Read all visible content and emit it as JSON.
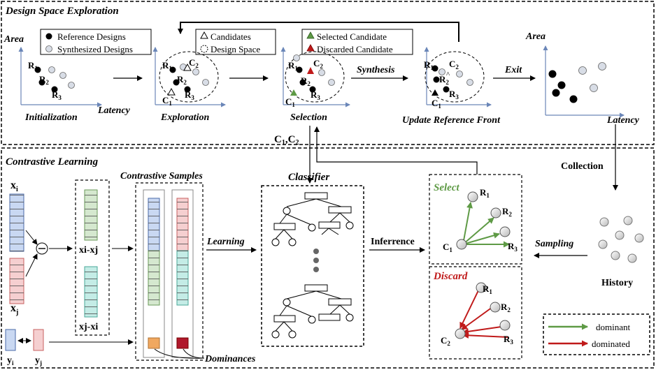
{
  "sections": {
    "top_title": "Design Space Exploration",
    "bottom_title": "Contrastive Learning"
  },
  "axes": {
    "area": "Area",
    "latency": "Latency"
  },
  "legends": {
    "reference": "Reference Designs",
    "synthesized": "Synthesized Designs",
    "candidates": "Candidates",
    "design_space": "Design Space",
    "selected": "Selected Candidate",
    "discarded": "Discarded Candidate"
  },
  "stages": {
    "initialization": "Initialization",
    "exploration": "Exploration",
    "selection": "Selection",
    "update": "Update Reference Front"
  },
  "arrows": {
    "synthesis": "Synthesis",
    "exit": "Exit",
    "collection": "Collection",
    "learning": "Learning",
    "inference": "Inferrence",
    "sampling": "Sampling",
    "c1c2": "C1,C2"
  },
  "points": {
    "r": "R",
    "c": "C",
    "sub1": "1",
    "sub2": "2",
    "sub3": "3",
    "x": "x",
    "y": "y",
    "i": "i",
    "j": "j",
    "xi_minus_xj": "xi-xj",
    "xj_minus_xi": "xj-xi"
  },
  "labels": {
    "contrastive_samples": "Contrastive Samples",
    "classifier": "Classifier",
    "select": "Select",
    "discard": "Discard",
    "history": "History",
    "dominances": "Dominances",
    "dominant": "dominant",
    "dominated": "dominated"
  },
  "colors": {
    "green": "#5e9a45",
    "red": "#c01a1a",
    "blue_fill": "#c9d8f2",
    "pink_fill": "#f5cfd0",
    "green_fill": "#d5e8cf",
    "teal_fill": "#c4ece6",
    "orange": "#f0a860",
    "dark_red": "#b0182c"
  }
}
